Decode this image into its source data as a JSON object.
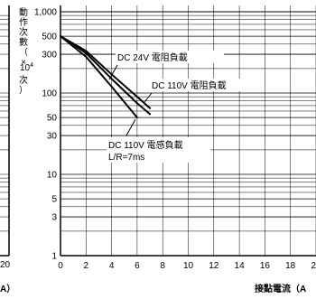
{
  "chart_data": {
    "type": "line",
    "ylabel": "動作次數（×10⁴次）",
    "ylabel_chars": [
      "動",
      "作",
      "次",
      "數",
      "（",
      "×"
    ],
    "ylabel_exp": "10",
    "ylabel_exp_sup": "4",
    "ylabel_chars2": [
      "次",
      "）"
    ],
    "xlabel": "接點電流（A",
    "y_scale": "log",
    "ylim": [
      1,
      1000
    ],
    "xlim": [
      0,
      20
    ],
    "x_ticks": [
      0,
      2,
      4,
      6,
      8,
      10,
      12,
      14,
      16,
      18,
      20
    ],
    "x_tick_labels": [
      "0",
      "2",
      "4",
      "6",
      "8",
      "10",
      "12",
      "14",
      "16",
      "18",
      "20"
    ],
    "y_ticks": [
      1,
      3,
      5,
      10,
      30,
      50,
      100,
      300,
      500,
      1000
    ],
    "y_tick_labels": [
      "1",
      "3",
      "5",
      "10",
      "30",
      "50",
      "100",
      "300",
      "500",
      "1,000"
    ],
    "grid": true,
    "series": [
      {
        "name": "DC 24V 電阻負載",
        "x": [
          0,
          2,
          4,
          6,
          7
        ],
        "y": [
          500,
          330,
          170,
          90,
          65
        ]
      },
      {
        "name": "DC 110V 電阻負載",
        "x": [
          0,
          2,
          4,
          6,
          7
        ],
        "y": [
          500,
          310,
          150,
          75,
          55
        ]
      },
      {
        "name": "DC 110V 電感負載",
        "x": [
          0,
          2,
          4,
          6
        ],
        "y": [
          500,
          280,
          120,
          50
        ]
      }
    ],
    "annotations": [
      {
        "text": "DC 24V 電阻負載"
      },
      {
        "text": "DC 110V 電阻負載"
      },
      {
        "text": "DC 110V 電感負載"
      },
      {
        "text": "L/R=7ms"
      }
    ],
    "left_panel": {
      "x_tick_label": "20",
      "xlabel_fragment": "A）"
    }
  }
}
